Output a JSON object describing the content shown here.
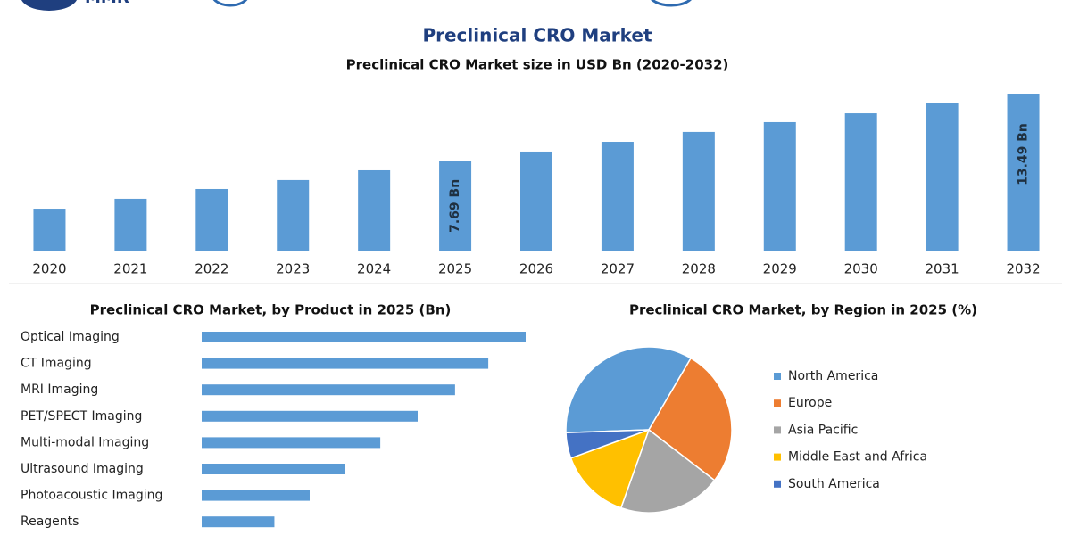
{
  "header": {
    "logo": "MMR",
    "title": "Preclinical CRO Market"
  },
  "chart_data": [
    {
      "type": "bar",
      "title": "Preclinical CRO Market size in USD Bn (2020-2032)",
      "categories": [
        "2020",
        "2021",
        "2022",
        "2023",
        "2024",
        "2025",
        "2026",
        "2027",
        "2028",
        "2029",
        "2030",
        "2031",
        "2032"
      ],
      "values": [
        3.6,
        4.45,
        5.29,
        6.06,
        6.9,
        7.69,
        8.51,
        9.35,
        10.2,
        11.04,
        11.8,
        12.65,
        13.49
      ],
      "value_labels": [
        null,
        null,
        null,
        null,
        null,
        "7.69 Bn",
        null,
        null,
        null,
        null,
        null,
        null,
        "13.49 Bn"
      ],
      "color": "#5b9bd5"
    },
    {
      "type": "hbar",
      "title": "Preclinical CRO Market, by Product in 2025 (Bn)",
      "categories": [
        "Optical Imaging",
        "CT Imaging",
        "MRI Imaging",
        "PET/SPECT Imaging",
        "Multi-modal Imaging",
        "Ultrasound Imaging",
        "Photoacoustic Imaging",
        "Reagents"
      ],
      "values": [
        1.56,
        1.38,
        1.22,
        1.04,
        0.86,
        0.69,
        0.52,
        0.35
      ],
      "color": "#5b9bd5"
    },
    {
      "type": "pie",
      "title": "Preclinical CRO Market, by Region in 2025 (%)",
      "categories": [
        "North America",
        "Europe",
        "Asia Pacific",
        "Middle East and Africa",
        "South America"
      ],
      "values": [
        34,
        27,
        20,
        14,
        5
      ],
      "colors": [
        "#5b9bd5",
        "#ed7d31",
        "#a5a5a5",
        "#ffc000",
        "#4472c4"
      ]
    }
  ]
}
